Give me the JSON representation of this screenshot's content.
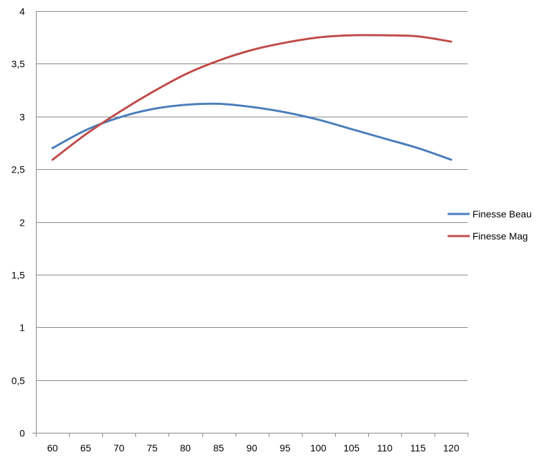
{
  "chart_data": {
    "type": "line",
    "title": "",
    "xlabel": "",
    "ylabel": "",
    "x": [
      60,
      65,
      70,
      75,
      80,
      85,
      90,
      95,
      100,
      105,
      110,
      115,
      120
    ],
    "x_tick_labels": [
      "60",
      "65",
      "70",
      "75",
      "80",
      "85",
      "90",
      "95",
      "100",
      "105",
      "110",
      "115",
      "120"
    ],
    "y_tick_labels": [
      "0",
      "0,5",
      "1",
      "1,5",
      "2",
      "2,5",
      "3",
      "3,5",
      "4"
    ],
    "y_ticks": [
      0,
      0.5,
      1,
      1.5,
      2,
      2.5,
      3,
      3.5,
      4
    ],
    "ylim": [
      0,
      4
    ],
    "grid": "horizontal",
    "legend_position": "right",
    "series": [
      {
        "name": "Finesse Beau",
        "color": "#4A7EBB",
        "values": [
          2.7,
          2.87,
          2.99,
          3.07,
          3.11,
          3.12,
          3.09,
          3.04,
          2.97,
          2.88,
          2.79,
          2.7,
          2.59
        ]
      },
      {
        "name": "Finesse Mag",
        "color": "#BE4B48",
        "values": [
          2.59,
          2.83,
          3.04,
          3.23,
          3.4,
          3.53,
          3.63,
          3.7,
          3.75,
          3.77,
          3.77,
          3.76,
          3.71
        ]
      }
    ]
  }
}
